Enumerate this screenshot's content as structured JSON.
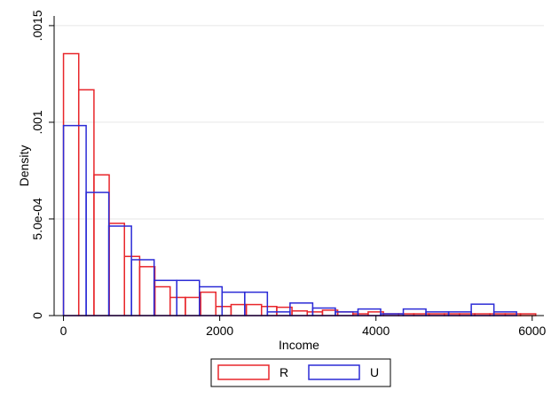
{
  "chart_data": {
    "type": "bar",
    "subtype": "overlaid-histogram",
    "title": "",
    "xlabel": "Income",
    "ylabel": "Density",
    "xlim": [
      -120,
      6150
    ],
    "ylim": [
      0,
      0.00155
    ],
    "x_ticks": [
      {
        "value": 0,
        "label": "0"
      },
      {
        "value": 2000,
        "label": "2000"
      },
      {
        "value": 4000,
        "label": "4000"
      },
      {
        "value": 6000,
        "label": "6000"
      }
    ],
    "y_ticks": [
      {
        "value": 0,
        "label": "0"
      },
      {
        "value": 0.0005,
        "label": "5.0e-04"
      },
      {
        "value": 0.001,
        "label": ".001"
      },
      {
        "value": 0.0015,
        "label": ".0015"
      }
    ],
    "grid": true,
    "legend_position": "bottom",
    "series": [
      {
        "name": "R",
        "color": "#e8262b",
        "bins": [
          {
            "x0": 0,
            "x1": 195,
            "y": 0.001355
          },
          {
            "x0": 195,
            "x1": 390,
            "y": 0.001168
          },
          {
            "x0": 390,
            "x1": 585,
            "y": 0.000728
          },
          {
            "x0": 585,
            "x1": 780,
            "y": 0.000477
          },
          {
            "x0": 780,
            "x1": 975,
            "y": 0.000306
          },
          {
            "x0": 975,
            "x1": 1170,
            "y": 0.000253
          },
          {
            "x0": 1170,
            "x1": 1365,
            "y": 0.000149
          },
          {
            "x0": 1365,
            "x1": 1560,
            "y": 9.4e-05
          },
          {
            "x0": 1560,
            "x1": 1755,
            "y": 9.4e-05
          },
          {
            "x0": 1755,
            "x1": 1950,
            "y": 0.000121
          },
          {
            "x0": 1950,
            "x1": 2145,
            "y": 4.7e-05
          },
          {
            "x0": 2145,
            "x1": 2340,
            "y": 5.7e-05
          },
          {
            "x0": 2340,
            "x1": 2535,
            "y": 5.7e-05
          },
          {
            "x0": 2535,
            "x1": 2730,
            "y": 4.7e-05
          },
          {
            "x0": 2730,
            "x1": 2925,
            "y": 4.3e-05
          },
          {
            "x0": 2925,
            "x1": 3120,
            "y": 2.4e-05
          },
          {
            "x0": 3120,
            "x1": 3315,
            "y": 1.9e-05
          },
          {
            "x0": 3315,
            "x1": 3510,
            "y": 2.8e-05
          },
          {
            "x0": 3510,
            "x1": 3705,
            "y": 1.9e-05
          },
          {
            "x0": 3705,
            "x1": 3900,
            "y": 9e-06
          },
          {
            "x0": 3900,
            "x1": 4095,
            "y": 1.9e-05
          },
          {
            "x0": 4095,
            "x1": 4290,
            "y": 9e-06
          },
          {
            "x0": 4290,
            "x1": 4485,
            "y": 9e-06
          },
          {
            "x0": 4485,
            "x1": 4680,
            "y": 9e-06
          },
          {
            "x0": 4680,
            "x1": 4875,
            "y": 9e-06
          },
          {
            "x0": 4875,
            "x1": 5070,
            "y": 9e-06
          },
          {
            "x0": 5070,
            "x1": 5265,
            "y": 9e-06
          },
          {
            "x0": 5265,
            "x1": 5460,
            "y": 9e-06
          },
          {
            "x0": 5460,
            "x1": 5655,
            "y": 9e-06
          },
          {
            "x0": 5655,
            "x1": 5850,
            "y": 9e-06
          },
          {
            "x0": 5850,
            "x1": 6045,
            "y": 9e-06
          }
        ]
      },
      {
        "name": "U",
        "color": "#2b2bd6",
        "bins": [
          {
            "x0": 0,
            "x1": 290,
            "y": 0.000983
          },
          {
            "x0": 290,
            "x1": 580,
            "y": 0.000637
          },
          {
            "x0": 580,
            "x1": 870,
            "y": 0.000463
          },
          {
            "x0": 870,
            "x1": 1160,
            "y": 0.000289
          },
          {
            "x0": 1160,
            "x1": 1450,
            "y": 0.000182
          },
          {
            "x0": 1450,
            "x1": 1740,
            "y": 0.000182
          },
          {
            "x0": 1740,
            "x1": 2030,
            "y": 0.000149
          },
          {
            "x0": 2030,
            "x1": 2320,
            "y": 0.000121
          },
          {
            "x0": 2320,
            "x1": 2610,
            "y": 0.000121
          },
          {
            "x0": 2610,
            "x1": 2900,
            "y": 1.9e-05
          },
          {
            "x0": 2900,
            "x1": 3190,
            "y": 6.5e-05
          },
          {
            "x0": 3190,
            "x1": 3480,
            "y": 3.9e-05
          },
          {
            "x0": 3480,
            "x1": 3770,
            "y": 1.9e-05
          },
          {
            "x0": 3770,
            "x1": 4060,
            "y": 3.4e-05
          },
          {
            "x0": 4060,
            "x1": 4350,
            "y": 9e-06
          },
          {
            "x0": 4350,
            "x1": 4640,
            "y": 3.4e-05
          },
          {
            "x0": 4640,
            "x1": 4930,
            "y": 1.9e-05
          },
          {
            "x0": 4930,
            "x1": 5220,
            "y": 1.9e-05
          },
          {
            "x0": 5220,
            "x1": 5510,
            "y": 5.9e-05
          },
          {
            "x0": 5510,
            "x1": 5800,
            "y": 1.9e-05
          }
        ]
      }
    ],
    "legend": [
      {
        "label": "R",
        "color": "#e8262b"
      },
      {
        "label": "U",
        "color": "#2b2bd6"
      }
    ]
  }
}
